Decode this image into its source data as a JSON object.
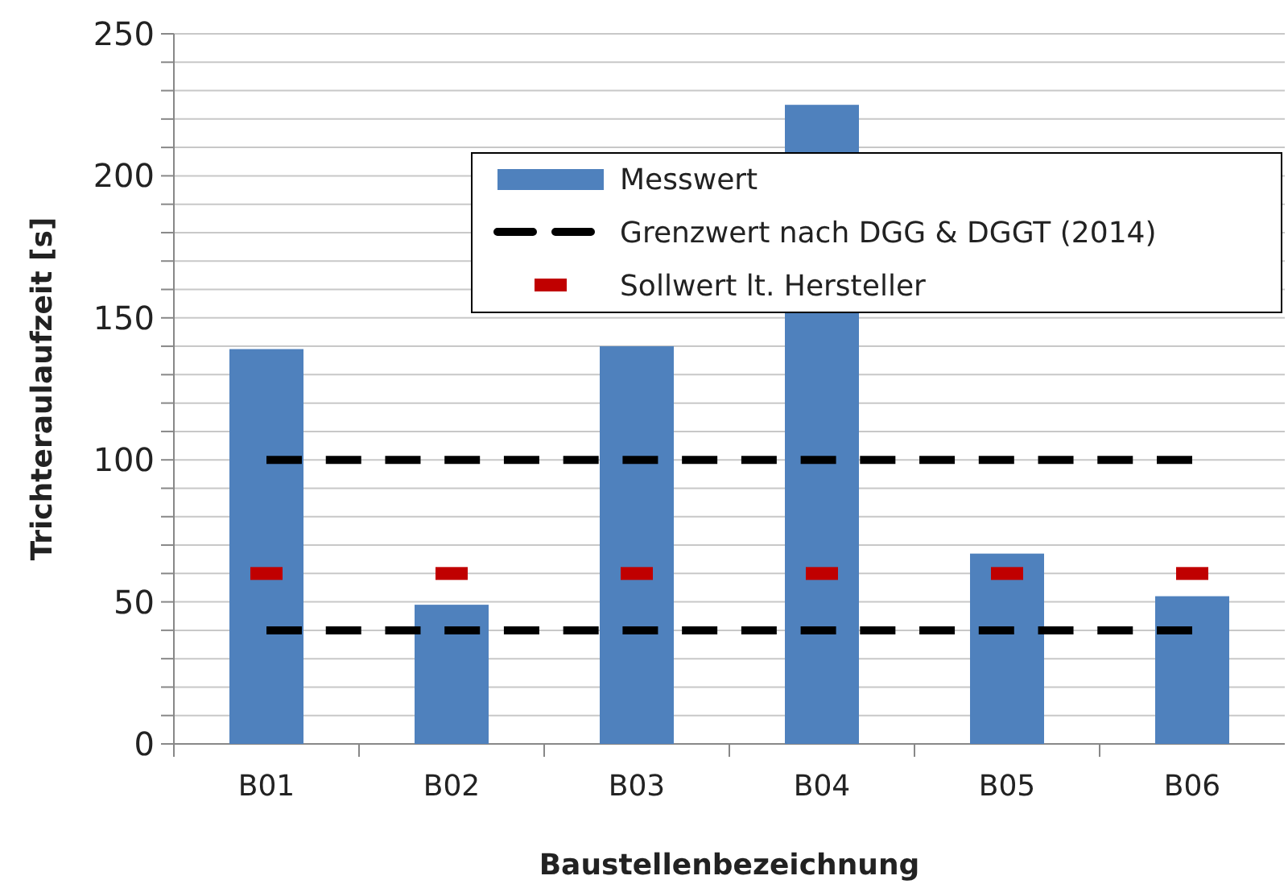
{
  "chart_data": {
    "type": "bar",
    "xlabel": "Baustellenbezeichnung",
    "ylabel": "Trichteraulaufzeit [s]",
    "categories": [
      "B01",
      "B02",
      "B03",
      "B04",
      "B05",
      "B06"
    ],
    "series": [
      {
        "name": "Messwert",
        "color": "#4f81bd",
        "values": [
          139,
          49,
          140,
          225,
          67,
          52
        ]
      },
      {
        "name": "Grenzwert nach DGG & DGGT (2014)",
        "type": "line",
        "line_style": "dashed",
        "color": "#000000",
        "values": [
          100,
          100,
          100,
          100,
          100,
          100
        ]
      },
      {
        "type": "line",
        "line_style": "dashed",
        "color": "#000000",
        "values": [
          40,
          40,
          40,
          40,
          40,
          40
        ]
      },
      {
        "name": "Sollwert lt. Hersteller",
        "type": "scatter",
        "marker": "square",
        "color": "#c00000",
        "values": [
          60,
          60,
          60,
          60,
          60,
          60
        ]
      }
    ],
    "ylim": [
      0,
      250
    ],
    "yticks": [
      0,
      {
        "value": 10,
        "label": null
      },
      {
        "value": 20,
        "label": null
      },
      {
        "value": 30,
        "label": null
      },
      {
        "value": 40,
        "label": null
      },
      50,
      {
        "value": 60,
        "label": null
      },
      {
        "value": 70,
        "label": null
      },
      {
        "value": 80,
        "label": null
      },
      {
        "value": 90,
        "label": null
      },
      100,
      {
        "value": 110,
        "label": null
      },
      {
        "value": 120,
        "label": null
      },
      {
        "value": 130,
        "label": null
      },
      {
        "value": 140,
        "label": null
      },
      150,
      {
        "value": 160,
        "label": null
      },
      {
        "value": 170,
        "label": null
      },
      {
        "value": 180,
        "label": null
      },
      {
        "value": 190,
        "label": null
      },
      200,
      {
        "value": 210,
        "label": null
      },
      {
        "value": 220,
        "label": null
      },
      {
        "value": 230,
        "label": null
      },
      {
        "value": 240,
        "label": null
      },
      250
    ],
    "grid": "y",
    "legend": "top right"
  }
}
